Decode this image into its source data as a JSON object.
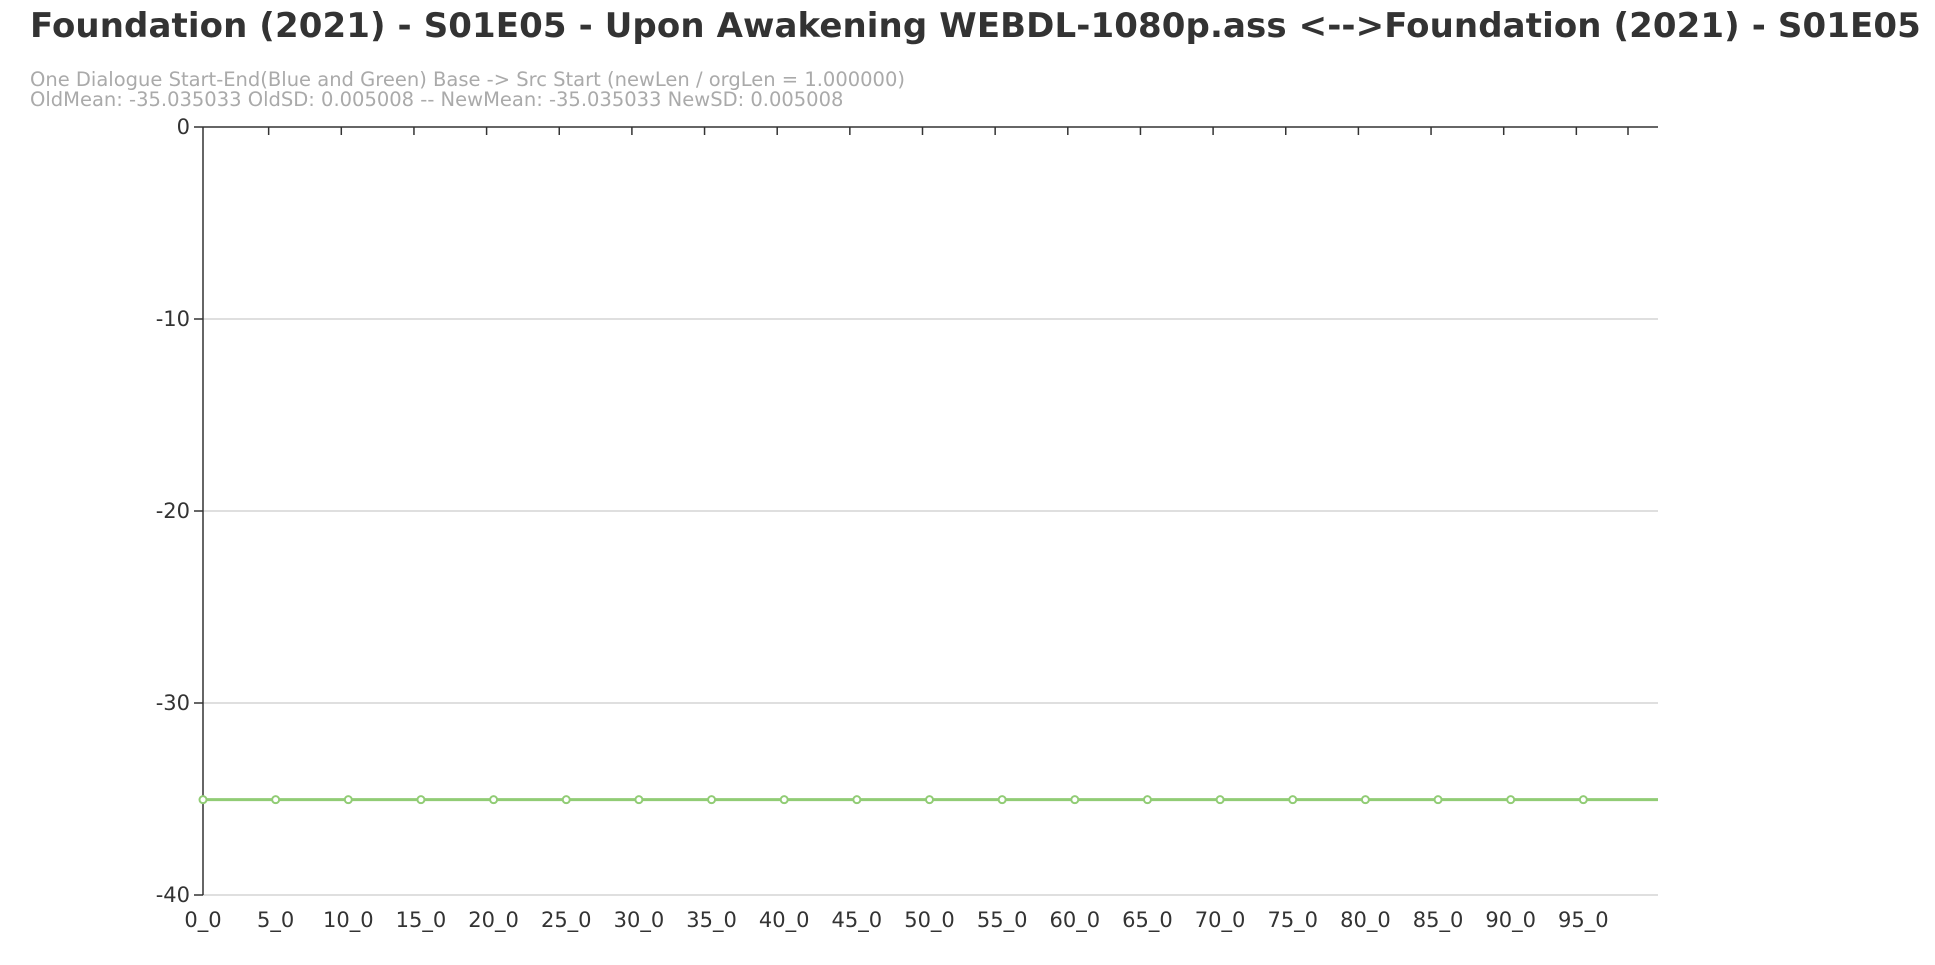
{
  "chart_data": {
    "type": "line",
    "title": "Foundation (2021) - S01E05 - Upon Awakening WEBDL-1080p.ass <-->Foundation (2021) - S01E05",
    "subtitle_lines": [
      "One Dialogue Start-End(Blue and Green) Base -> Src Start (newLen / orgLen = 1.000000)",
      "OldMean: -35.035033 OldSD: 0.005008 -- NewMean: -35.035033 NewSD: 0.005008"
    ],
    "xlabel": "",
    "ylabel": "",
    "ylim": [
      -40,
      0
    ],
    "yticks": [
      0,
      -10,
      -20,
      -30,
      -40
    ],
    "grid": true,
    "x_tick_labels": [
      "0_0",
      "5_0",
      "10_0",
      "15_0",
      "20_0",
      "25_0",
      "30_0",
      "35_0",
      "40_0",
      "45_0",
      "50_0",
      "55_0",
      "60_0",
      "65_0",
      "70_0",
      "75_0",
      "80_0",
      "85_0",
      "90_0",
      "95_0"
    ],
    "x_count": 100,
    "series": [
      {
        "color": "#6b8fc9",
        "constant_value": -35.035033
      },
      {
        "color": "#91cc75",
        "constant_value": -35.035033,
        "markers_every": 5
      }
    ]
  }
}
